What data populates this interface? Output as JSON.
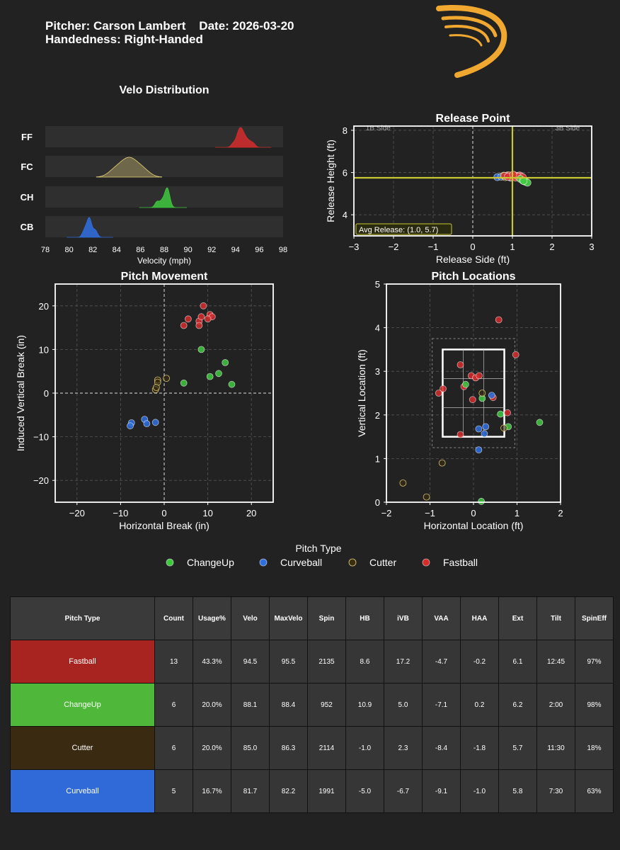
{
  "header": {
    "pitcher": "Pitcher: Carson Lambert",
    "date": "Date: 2026-03-20",
    "handedness": "Handedness: Right-Handed"
  },
  "colors": {
    "Fastball": "#d52b2b",
    "ChangeUp": "#3ec83e",
    "Cutter": "#e8d27a",
    "Curveball": "#2f6fe0",
    "accent_line": "#c8c832",
    "logo": "#f0a830"
  },
  "chart_data": [
    {
      "id": "velo",
      "type": "area",
      "title": "Velo Distribution",
      "xlabel": "Velocity (mph)",
      "xlim": [
        78,
        98
      ],
      "xticks": [
        78,
        80,
        82,
        84,
        86,
        88,
        90,
        92,
        94,
        96,
        98
      ],
      "rows": [
        {
          "label": "FF",
          "pitch": "Fastball",
          "values": [
            93.8,
            94.1,
            94.2,
            94.3,
            94.4,
            94.4,
            94.5,
            94.6,
            94.7,
            94.8,
            95.0,
            95.2,
            95.5
          ]
        },
        {
          "label": "FC",
          "pitch": "Cutter",
          "values": [
            83.8,
            84.5,
            84.9,
            85.2,
            85.6,
            86.3
          ]
        },
        {
          "label": "CH",
          "pitch": "ChangeUp",
          "values": [
            87.4,
            87.8,
            88.1,
            88.2,
            88.3,
            88.4
          ]
        },
        {
          "label": "CB",
          "pitch": "Curveball",
          "values": [
            81.3,
            81.6,
            81.7,
            81.8,
            82.2
          ]
        }
      ]
    },
    {
      "id": "release",
      "type": "scatter",
      "title": "Release Point",
      "xlabel": "Release Side (ft)",
      "ylabel": "Release Height (ft)",
      "xlim": [
        -3,
        3
      ],
      "ylim": [
        3,
        8.2
      ],
      "xticks": [
        -3,
        -2,
        -1,
        0,
        1,
        2,
        3
      ],
      "yticks": [
        4,
        6,
        8
      ],
      "side_labels": [
        "1B Side",
        "3B Side"
      ],
      "avg_label": "Avg Release: (1.0, 5.7)",
      "avg": [
        1.0,
        5.75
      ],
      "points": [
        {
          "p": "Curveball",
          "x": 0.62,
          "y": 5.78
        },
        {
          "p": "Curveball",
          "x": 0.72,
          "y": 5.8
        },
        {
          "p": "Curveball",
          "x": 0.85,
          "y": 5.82
        },
        {
          "p": "Curveball",
          "x": 0.95,
          "y": 5.76
        },
        {
          "p": "Curveball",
          "x": 1.05,
          "y": 5.8
        },
        {
          "p": "Cutter",
          "x": 0.78,
          "y": 5.85
        },
        {
          "p": "Cutter",
          "x": 0.88,
          "y": 5.86
        },
        {
          "p": "Cutter",
          "x": 0.98,
          "y": 5.84
        },
        {
          "p": "Cutter",
          "x": 1.1,
          "y": 5.82
        },
        {
          "p": "Cutter",
          "x": 1.18,
          "y": 5.75
        },
        {
          "p": "Cutter",
          "x": 0.82,
          "y": 5.78
        },
        {
          "p": "Fastball",
          "x": 0.8,
          "y": 5.84
        },
        {
          "p": "Fastball",
          "x": 0.92,
          "y": 5.86
        },
        {
          "p": "Fastball",
          "x": 1.0,
          "y": 5.82
        },
        {
          "p": "Fastball",
          "x": 1.05,
          "y": 5.86
        },
        {
          "p": "Fastball",
          "x": 1.12,
          "y": 5.84
        },
        {
          "p": "Fastball",
          "x": 1.18,
          "y": 5.86
        },
        {
          "p": "Fastball",
          "x": 1.22,
          "y": 5.82
        },
        {
          "p": "Fastball",
          "x": 0.96,
          "y": 5.78
        },
        {
          "p": "Fastball",
          "x": 1.08,
          "y": 5.76
        },
        {
          "p": "Fastball",
          "x": 1.15,
          "y": 5.8
        },
        {
          "p": "Fastball",
          "x": 0.88,
          "y": 5.8
        },
        {
          "p": "Fastball",
          "x": 1.02,
          "y": 5.9
        },
        {
          "p": "Fastball",
          "x": 1.26,
          "y": 5.78
        },
        {
          "p": "ChangeUp",
          "x": 1.2,
          "y": 5.7
        },
        {
          "p": "ChangeUp",
          "x": 1.26,
          "y": 5.62
        },
        {
          "p": "ChangeUp",
          "x": 1.3,
          "y": 5.58
        },
        {
          "p": "ChangeUp",
          "x": 1.35,
          "y": 5.55
        },
        {
          "p": "ChangeUp",
          "x": 1.38,
          "y": 5.52
        },
        {
          "p": "ChangeUp",
          "x": 1.28,
          "y": 5.6
        }
      ]
    },
    {
      "id": "movement",
      "type": "scatter",
      "title": "Pitch Movement",
      "xlabel": "Horizontal Break (in)",
      "ylabel": "Induced Vertical Break (in)",
      "xlim": [
        -25,
        25
      ],
      "ylim": [
        -25,
        25
      ],
      "xticks": [
        -20,
        -10,
        0,
        10,
        20
      ],
      "yticks": [
        -20,
        -10,
        0,
        10,
        20
      ],
      "points": [
        {
          "p": "Fastball",
          "x": 9.0,
          "y": 20.0
        },
        {
          "p": "Fastball",
          "x": 5.5,
          "y": 17.0
        },
        {
          "p": "Fastball",
          "x": 8.0,
          "y": 16.5
        },
        {
          "p": "Fastball",
          "x": 8.5,
          "y": 17.5
        },
        {
          "p": "Fastball",
          "x": 10.5,
          "y": 18.0
        },
        {
          "p": "Fastball",
          "x": 11.0,
          "y": 17.5
        },
        {
          "p": "Fastball",
          "x": 4.5,
          "y": 15.5
        },
        {
          "p": "Fastball",
          "x": 8.0,
          "y": 15.5
        },
        {
          "p": "Fastball",
          "x": 10.0,
          "y": 17.0
        },
        {
          "p": "ChangeUp",
          "x": 8.5,
          "y": 10.0
        },
        {
          "p": "ChangeUp",
          "x": 14.0,
          "y": 7.0
        },
        {
          "p": "ChangeUp",
          "x": 12.5,
          "y": 4.5
        },
        {
          "p": "ChangeUp",
          "x": 10.5,
          "y": 3.8
        },
        {
          "p": "ChangeUp",
          "x": 4.5,
          "y": 2.3
        },
        {
          "p": "ChangeUp",
          "x": 15.5,
          "y": 2.0
        },
        {
          "p": "Cutter",
          "x": 0.5,
          "y": 3.4
        },
        {
          "p": "Cutter",
          "x": -1.5,
          "y": 3.0
        },
        {
          "p": "Cutter",
          "x": -1.5,
          "y": 2.5
        },
        {
          "p": "Cutter",
          "x": -2.0,
          "y": 0.8
        },
        {
          "p": "Cutter",
          "x": -1.8,
          "y": 1.3
        },
        {
          "p": "Curveball",
          "x": -7.5,
          "y": -6.8
        },
        {
          "p": "Curveball",
          "x": -7.8,
          "y": -7.5
        },
        {
          "p": "Curveball",
          "x": -4.5,
          "y": -6.0
        },
        {
          "p": "Curveball",
          "x": -4.0,
          "y": -7.0
        },
        {
          "p": "Curveball",
          "x": -2.0,
          "y": -6.7
        }
      ]
    },
    {
      "id": "location",
      "type": "scatter",
      "title": "Pitch Locations",
      "xlabel": "Horizontal Location (ft)",
      "ylabel": "Vertical Location (ft)",
      "xlim": [
        -2,
        2
      ],
      "ylim": [
        0,
        5
      ],
      "xticks": [
        -2,
        -1,
        0,
        1,
        2
      ],
      "yticks": [
        0,
        1,
        2,
        3,
        4,
        5
      ],
      "zone": {
        "x": [
          -0.708,
          0.708
        ],
        "y": [
          1.5,
          3.5
        ]
      },
      "shadow": {
        "x": [
          -0.95,
          0.95
        ],
        "y": [
          1.25,
          3.75
        ]
      },
      "points": [
        {
          "p": "Fastball",
          "x": 0.58,
          "y": 4.18
        },
        {
          "p": "Fastball",
          "x": 0.97,
          "y": 3.38
        },
        {
          "p": "Fastball",
          "x": -0.3,
          "y": 3.15
        },
        {
          "p": "Fastball",
          "x": -0.05,
          "y": 2.9
        },
        {
          "p": "Fastball",
          "x": 0.05,
          "y": 2.85
        },
        {
          "p": "Fastball",
          "x": 0.13,
          "y": 2.9
        },
        {
          "p": "Fastball",
          "x": -0.22,
          "y": 2.65
        },
        {
          "p": "Fastball",
          "x": -0.7,
          "y": 2.6
        },
        {
          "p": "Fastball",
          "x": -0.8,
          "y": 2.5
        },
        {
          "p": "Fastball",
          "x": 0.45,
          "y": 2.4
        },
        {
          "p": "Fastball",
          "x": -0.02,
          "y": 2.35
        },
        {
          "p": "Fastball",
          "x": 0.78,
          "y": 2.05
        },
        {
          "p": "Fastball",
          "x": -0.3,
          "y": 1.55
        },
        {
          "p": "ChangeUp",
          "x": -0.18,
          "y": 2.7
        },
        {
          "p": "ChangeUp",
          "x": 0.2,
          "y": 2.38
        },
        {
          "p": "ChangeUp",
          "x": 0.62,
          "y": 2.02
        },
        {
          "p": "ChangeUp",
          "x": 0.8,
          "y": 1.73
        },
        {
          "p": "ChangeUp",
          "x": 1.52,
          "y": 1.83
        },
        {
          "p": "ChangeUp",
          "x": 0.18,
          "y": 0.02
        },
        {
          "p": "Curveball",
          "x": 0.42,
          "y": 2.45
        },
        {
          "p": "Curveball",
          "x": 0.28,
          "y": 1.73
        },
        {
          "p": "Curveball",
          "x": 0.12,
          "y": 1.68
        },
        {
          "p": "Curveball",
          "x": 0.25,
          "y": 1.57
        },
        {
          "p": "Curveball",
          "x": 0.12,
          "y": 1.2
        },
        {
          "p": "Cutter",
          "x": 0.2,
          "y": 2.5
        },
        {
          "p": "Cutter",
          "x": 0.7,
          "y": 1.7
        },
        {
          "p": "Cutter",
          "x": -0.72,
          "y": 0.9
        },
        {
          "p": "Cutter",
          "x": -1.62,
          "y": 0.44
        },
        {
          "p": "Cutter",
          "x": -1.08,
          "y": 0.12
        }
      ]
    }
  ],
  "legend": {
    "title": "Pitch Type",
    "items": [
      "ChangeUp",
      "Curveball",
      "Cutter",
      "Fastball"
    ]
  },
  "table": {
    "columns": [
      "Pitch Type",
      "Count",
      "Usage%",
      "Velo",
      "MaxVelo",
      "Spin",
      "HB",
      "iVB",
      "VAA",
      "HAA",
      "Ext",
      "Tilt",
      "SpinEff"
    ],
    "rows": [
      {
        "pitch": "Fastball",
        "bg": "#a82421",
        "cells": [
          "Fastball",
          "13",
          "43.3%",
          "94.5",
          "95.5",
          "2135",
          "8.6",
          "17.2",
          "-4.7",
          "-0.2",
          "6.1",
          "12:45",
          "97%"
        ]
      },
      {
        "pitch": "ChangeUp",
        "bg": "#4fb83a",
        "cells": [
          "ChangeUp",
          "6",
          "20.0%",
          "88.1",
          "88.4",
          "952",
          "10.9",
          "5.0",
          "-7.1",
          "0.2",
          "6.2",
          "2:00",
          "98%"
        ]
      },
      {
        "pitch": "Cutter",
        "bg": "#3a2a12",
        "cells": [
          "Cutter",
          "6",
          "20.0%",
          "85.0",
          "86.3",
          "2114",
          "-1.0",
          "2.3",
          "-8.4",
          "-1.8",
          "5.7",
          "11:30",
          "18%"
        ]
      },
      {
        "pitch": "Curveball",
        "bg": "#2f6ad8",
        "cells": [
          "Curveball",
          "5",
          "16.7%",
          "81.7",
          "82.2",
          "1991",
          "-5.0",
          "-6.7",
          "-9.1",
          "-1.0",
          "5.8",
          "7:30",
          "63%"
        ]
      }
    ]
  }
}
